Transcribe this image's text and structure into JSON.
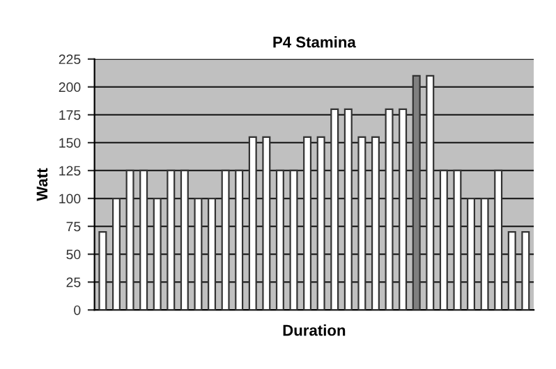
{
  "chart_data": {
    "type": "bar",
    "title": "P4 Stamina",
    "xlabel": "Duration",
    "ylabel": "Watt",
    "categories": [
      null,
      null,
      null,
      null,
      null,
      null,
      null,
      null,
      null,
      null,
      null,
      null,
      null,
      null,
      null,
      null,
      null,
      null,
      null,
      null,
      null,
      null,
      null,
      null,
      null,
      null,
      null,
      null,
      null,
      null,
      null,
      null
    ],
    "values": [
      70,
      100,
      125,
      125,
      100,
      125,
      125,
      100,
      100,
      125,
      125,
      155,
      155,
      125,
      125,
      155,
      155,
      180,
      180,
      155,
      155,
      180,
      180,
      210,
      210,
      125,
      125,
      100,
      100,
      125,
      70,
      70
    ],
    "colors": [
      "#ffffff",
      "#ffffff",
      "#ffffff",
      "#ffffff",
      "#ffffff",
      "#ffffff",
      "#ffffff",
      "#ffffff",
      "#ffffff",
      "#ffffff",
      "#ffffff",
      "#ffffff",
      "#ffffff",
      "#ffffff",
      "#ffffff",
      "#ffffff",
      "#ffffff",
      "#ffffff",
      "#ffffff",
      "#ffffff",
      "#ffffff",
      "#ffffff",
      "#ffffff",
      "#808080",
      "#ffffff",
      "#ffffff",
      "#ffffff",
      "#ffffff",
      "#ffffff",
      "#ffffff",
      "#ffffff",
      "#ffffff"
    ],
    "ylim": [
      0,
      225
    ],
    "yticks": [
      0,
      25,
      50,
      75,
      100,
      125,
      150,
      175,
      200,
      225
    ],
    "grid": "y"
  }
}
